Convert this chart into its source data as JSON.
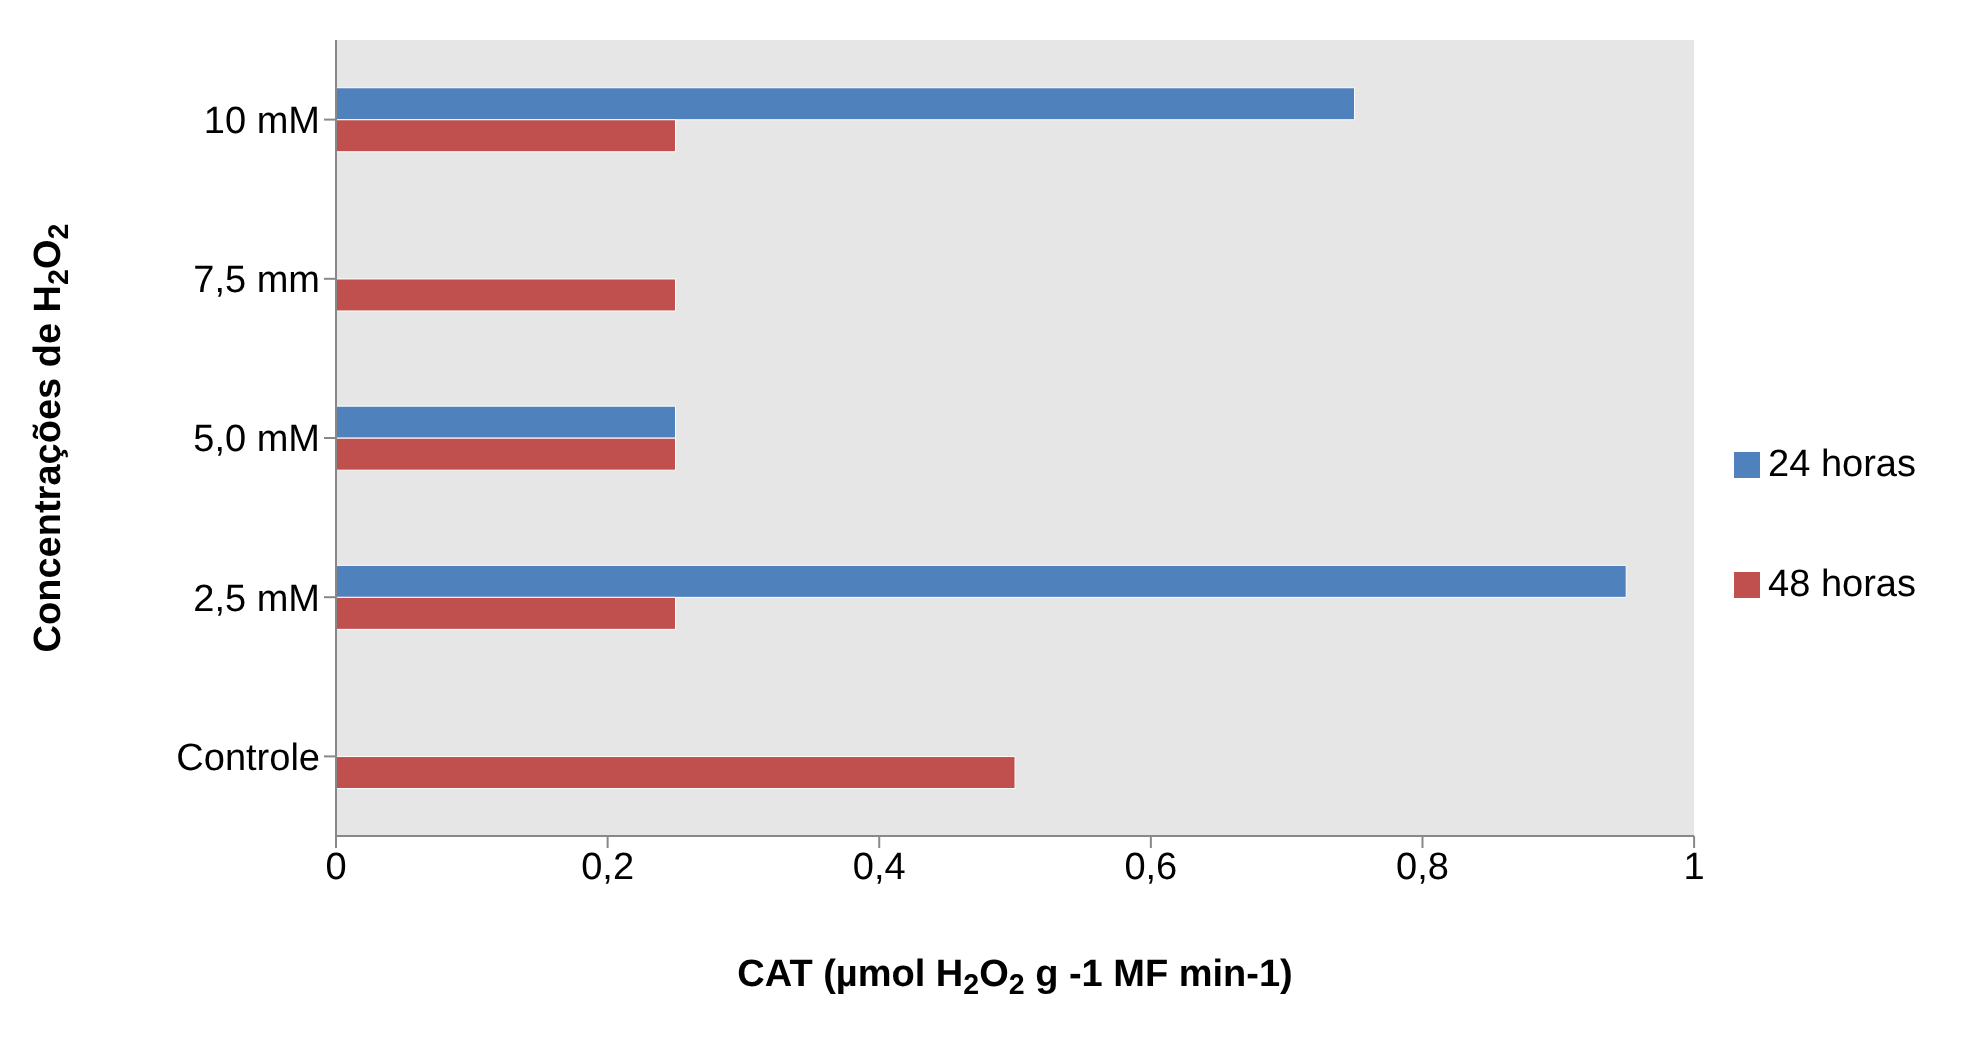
{
  "chart_data": {
    "type": "bar",
    "orientation": "horizontal",
    "ylabel": "Concentrações de H$_{2}$O$_{2}$",
    "xlabel": "CAT (µmol H$_{2}$O$_{2}$ g -1 MF min-1)",
    "categories": [
      "10 mM",
      "7,5 mm",
      "5,0 mM",
      "2,5 mM",
      "Controle"
    ],
    "series": [
      {
        "name": "24 horas",
        "color": "#4f81bd",
        "values": [
          0.75,
          null,
          0.25,
          0.95,
          null
        ]
      },
      {
        "name": "48 horas",
        "color": "#c0504d",
        "values": [
          0.25,
          0.25,
          0.25,
          0.25,
          0.5
        ]
      }
    ],
    "xlim": [
      0,
      1
    ],
    "xticks": [
      0,
      {
        "value": 0.2,
        "label": "0,2"
      },
      {
        "value": 0.4,
        "label": "0,4"
      },
      {
        "value": 0.6,
        "label": "0,6"
      },
      {
        "value": 0.8,
        "label": "0,8"
      },
      1
    ],
    "grid": false,
    "legend": "right"
  }
}
